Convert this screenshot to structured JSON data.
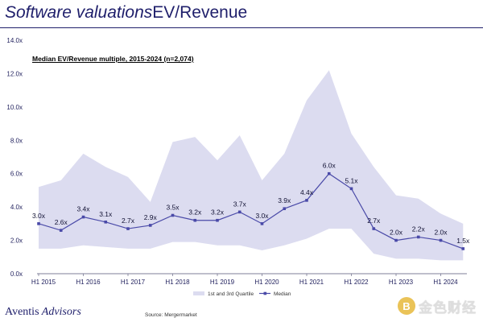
{
  "header": {
    "title_italic": "Software valuations",
    "title_rest": "EV/Revenue"
  },
  "footer": {
    "logo_part1": "Aventis",
    "logo_part2": " Advisors",
    "source": "Source: Mergermarket"
  },
  "watermark": {
    "text": "金色财经",
    "badge": "B"
  },
  "colors": {
    "band": "#dcdcf0",
    "median_line": "#4a4aa8",
    "axis_text": "#1f1f5c",
    "grid": "#e4e4ec"
  },
  "chart_data": {
    "type": "area",
    "title": "Median EV/Revenue multiple, 2015-2024 (n=2,074)",
    "xlabel": "",
    "ylabel": "",
    "ylim": [
      0,
      14
    ],
    "yticks": [
      "0.0x",
      "2.0x",
      "4.0x",
      "6.0x",
      "8.0x",
      "10.0x",
      "12.0x",
      "14.0x"
    ],
    "x_tick_labels": [
      "H1 2015",
      "H1 2016",
      "H1 2017",
      "H1 2018",
      "H1 2019",
      "H1 2020",
      "H1 2021",
      "H1 2022",
      "H1 2023",
      "H1 2024"
    ],
    "x": [
      "H1 2015",
      "H2 2015",
      "H1 2016",
      "H2 2016",
      "H1 2017",
      "H2 2017",
      "H1 2018",
      "H2 2018",
      "H1 2019",
      "H2 2019",
      "H1 2020",
      "H2 2020",
      "H1 2021",
      "H2 2021",
      "H1 2022",
      "H2 2022",
      "H1 2023",
      "H2 2023",
      "H1 2024",
      "H2 2024"
    ],
    "legend": [
      "1st and 3rd Quartile",
      "Median"
    ],
    "legend_position": "bottom-center",
    "series": [
      {
        "name": "Median",
        "values": [
          3.0,
          2.6,
          3.4,
          3.1,
          2.7,
          2.9,
          3.5,
          3.2,
          3.2,
          3.7,
          3.0,
          3.9,
          4.4,
          6.0,
          5.1,
          2.7,
          2.0,
          2.2,
          2.0,
          1.5
        ],
        "labels": [
          "3.0x",
          "2.6x",
          "3.4x",
          "3.1x",
          "2.7x",
          "2.9x",
          "3.5x",
          "3.2x",
          "3.2x",
          "3.7x",
          "3.0x",
          "3.9x",
          "4.4x",
          "6.0x",
          "5.1x",
          "2.7x",
          "2.0x",
          "2.2x",
          "2.0x",
          "1.5x"
        ]
      },
      {
        "name": "3rd Quartile",
        "values": [
          5.2,
          5.6,
          7.2,
          6.4,
          5.8,
          4.3,
          7.9,
          8.2,
          6.8,
          8.3,
          5.6,
          7.2,
          10.4,
          12.2,
          8.4,
          6.4,
          4.7,
          4.5,
          3.6,
          3.0
        ]
      },
      {
        "name": "1st Quartile",
        "values": [
          1.5,
          1.5,
          1.7,
          1.6,
          1.5,
          1.5,
          1.9,
          1.9,
          1.7,
          1.7,
          1.4,
          1.7,
          2.1,
          2.7,
          2.7,
          1.2,
          0.9,
          0.9,
          0.8,
          0.8
        ]
      }
    ]
  }
}
